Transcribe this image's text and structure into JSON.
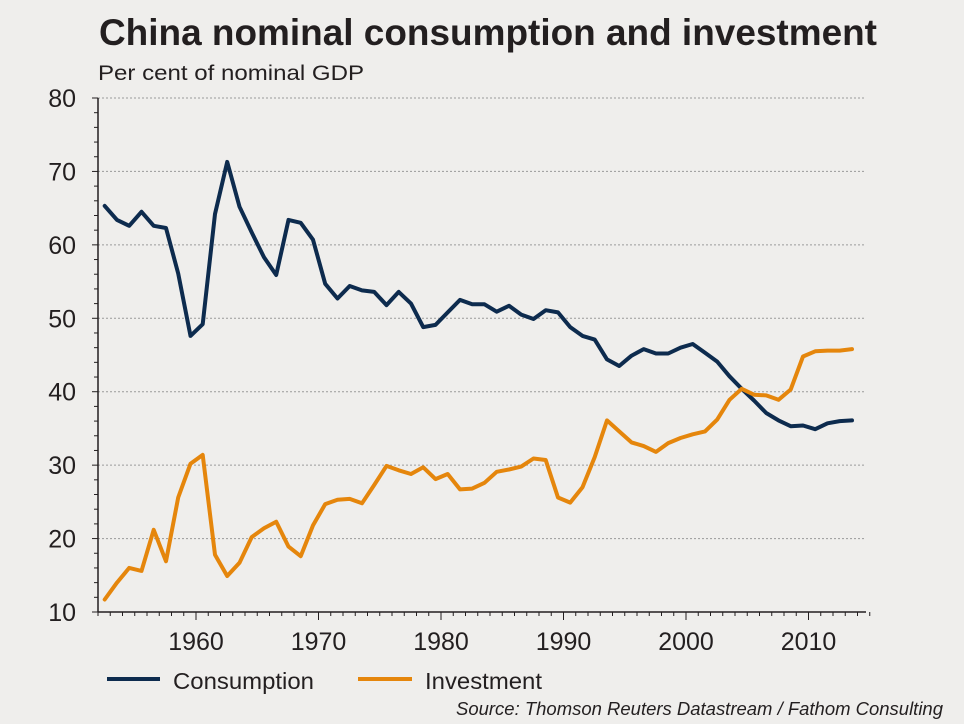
{
  "chart_data": {
    "type": "line",
    "title": "China nominal consumption and investment",
    "subtitle": "Per cent of nominal GDP",
    "xlabel": "",
    "ylabel": "Per cent of nominal GDP",
    "ylim": [
      10,
      80
    ],
    "xlim": [
      1952,
      2015.5
    ],
    "yticks": [
      10,
      20,
      30,
      40,
      50,
      60,
      70,
      80
    ],
    "ytick_labels": [
      "10",
      "20",
      "30",
      "40",
      "50",
      "60",
      "70",
      "80"
    ],
    "xticks": [
      1960,
      1970,
      1980,
      1990,
      2000,
      2010
    ],
    "xtick_labels": [
      "1960",
      "1970",
      "1980",
      "1990",
      "2000",
      "2010"
    ],
    "grid": "horizontal dotted",
    "legend_position": "bottom-left",
    "x": [
      1952,
      1953,
      1954,
      1955,
      1956,
      1957,
      1958,
      1959,
      1960,
      1961,
      1962,
      1963,
      1964,
      1965,
      1966,
      1967,
      1968,
      1969,
      1970,
      1971,
      1972,
      1973,
      1974,
      1975,
      1976,
      1977,
      1978,
      1979,
      1980,
      1981,
      1982,
      1983,
      1984,
      1985,
      1986,
      1987,
      1988,
      1989,
      1990,
      1991,
      1992,
      1993,
      1994,
      1995,
      1996,
      1997,
      1998,
      1999,
      2000,
      2001,
      2002,
      2003,
      2004,
      2005,
      2006,
      2007,
      2008,
      2009,
      2010,
      2011,
      2012,
      2013
    ],
    "series": [
      {
        "name": "Consumption",
        "color": "#0d2b4e",
        "values": [
          65.3,
          63.4,
          62.6,
          64.5,
          62.6,
          62.3,
          56.1,
          47.6,
          49.2,
          64.2,
          71.3,
          65.2,
          61.7,
          58.3,
          55.9,
          63.4,
          63.0,
          60.7,
          54.7,
          52.7,
          54.4,
          53.8,
          53.6,
          51.8,
          53.6,
          52.0,
          48.8,
          49.1,
          50.8,
          52.5,
          51.9,
          51.9,
          50.9,
          51.7,
          50.5,
          49.9,
          51.1,
          50.8,
          48.8,
          47.6,
          47.1,
          44.4,
          43.5,
          44.9,
          45.8,
          45.2,
          45.2,
          46.0,
          46.5,
          45.3,
          44.1,
          42.1,
          40.4,
          38.8,
          37.1,
          36.1,
          35.3,
          35.4,
          34.9,
          35.7,
          36.0,
          36.1
        ]
      },
      {
        "name": "Investment",
        "color": "#e5860c",
        "values": [
          11.7,
          14.0,
          16.0,
          15.6,
          21.2,
          16.9,
          25.6,
          30.2,
          31.4,
          17.8,
          14.9,
          16.7,
          20.2,
          21.4,
          22.3,
          18.9,
          17.6,
          21.8,
          24.7,
          25.3,
          25.4,
          24.8,
          27.3,
          29.9,
          29.3,
          28.8,
          29.7,
          28.1,
          28.8,
          26.7,
          26.8,
          27.6,
          29.1,
          29.4,
          29.8,
          30.9,
          30.7,
          25.6,
          24.9,
          27.0,
          31.1,
          36.1,
          34.6,
          33.1,
          32.6,
          31.8,
          33.0,
          33.7,
          34.2,
          34.6,
          36.2,
          38.9,
          40.4,
          39.6,
          39.5,
          38.9,
          40.3,
          44.8,
          45.5,
          45.6,
          45.6,
          45.8
        ]
      }
    ],
    "source": "Source: Thomson Reuters Datastream / Fathom Consulting"
  }
}
